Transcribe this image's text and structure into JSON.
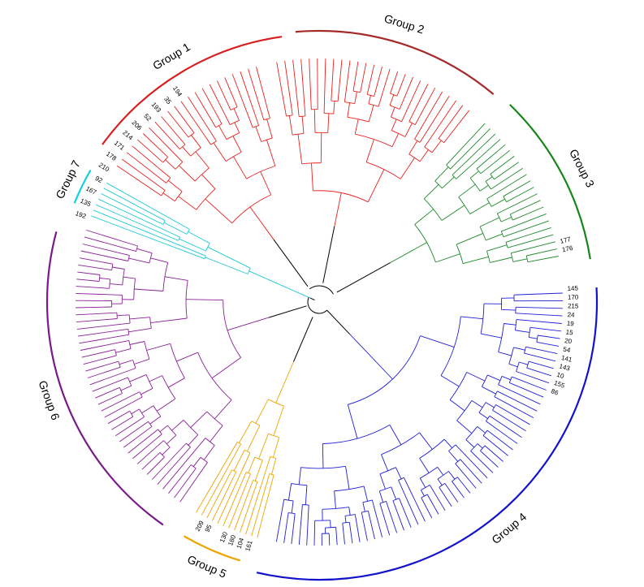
{
  "groups": [
    {
      "name": "Group 1",
      "color": "#d81e1e"
    },
    {
      "name": "Group 2",
      "color": "#a52a2a"
    },
    {
      "name": "Group 3",
      "color": "#16861a"
    },
    {
      "name": "Group 4",
      "color": "#1212cc"
    },
    {
      "name": "Group 5",
      "color": "#f0a400"
    },
    {
      "name": "Group 6",
      "color": "#7a1a8a"
    },
    {
      "name": "Group 7",
      "color": "#10d0e0"
    }
  ],
  "tree_colors": {
    "group1_2": "#e8221e",
    "group3": "#1e8a2a",
    "group4": "#1f1fd6",
    "group5": "#eda500",
    "group6": "#8b1f99",
    "group7": "#1cc8d8",
    "root": "#000000"
  },
  "tip_labels_visible": [
    "145",
    "170",
    "215",
    "24",
    "19",
    "15",
    "20",
    "54",
    "141",
    "143",
    "10",
    "155",
    "86",
    "176",
    "177",
    "192",
    "135",
    "167",
    "92",
    "210",
    "178",
    "171",
    "214",
    "206",
    "52",
    "193",
    "35",
    "194",
    "209",
    "95",
    "130",
    "180",
    "104",
    "161"
  ]
}
